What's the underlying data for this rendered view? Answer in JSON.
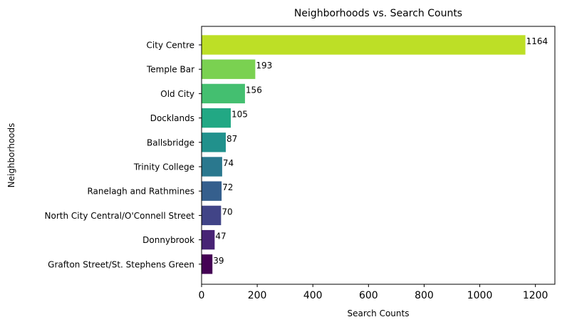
{
  "chart_data": {
    "type": "bar",
    "orientation": "horizontal",
    "title": "Neighborhoods vs. Search Counts",
    "xlabel": "Search Counts",
    "ylabel": "Neighborhoods",
    "xlim": [
      0,
      1270
    ],
    "xticks": [
      "0",
      "200",
      "400",
      "600",
      "800",
      "1000",
      "1200"
    ],
    "grid": false,
    "categories": [
      "City Centre",
      "Temple Bar",
      "Old City",
      "Docklands",
      "Ballsbridge",
      "Trinity College",
      "Ranelagh and Rathmines",
      "North City Central/O'Connell Street",
      "Donnybrook",
      "Grafton Street/St. Stephens Green"
    ],
    "values": [
      1164,
      193,
      156,
      105,
      87,
      74,
      72,
      70,
      47,
      39
    ],
    "colors": [
      "#bddf26",
      "#7ad151",
      "#44bf70",
      "#22a884",
      "#21918c",
      "#2a788e",
      "#355f8d",
      "#414487",
      "#482475",
      "#440154"
    ]
  }
}
